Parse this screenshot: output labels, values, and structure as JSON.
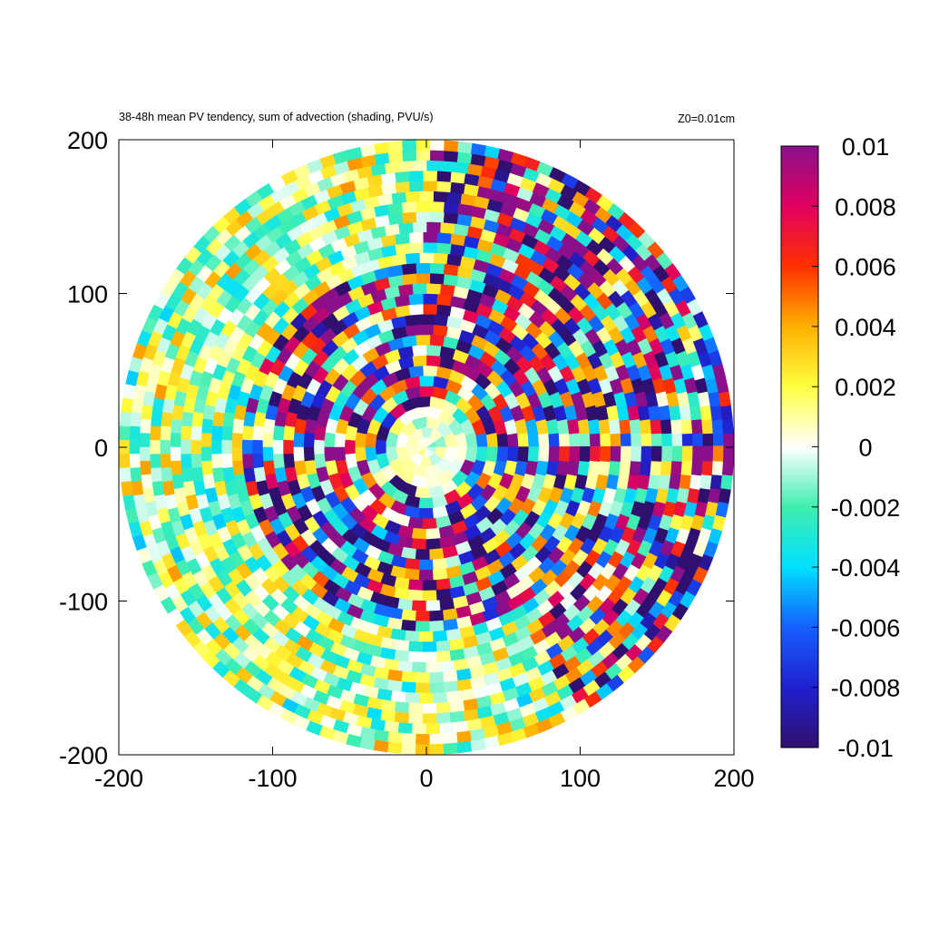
{
  "chart_data": {
    "type": "heatmap",
    "title": "38-48h mean PV tendency, sum of advection (shading, PVU/s)",
    "subtitle": "Z0=0.01cm",
    "xlabel": "",
    "ylabel": "",
    "xlim": [
      -200,
      200
    ],
    "ylim": [
      -200,
      200
    ],
    "x_ticks": [
      "-200",
      "-100",
      "0",
      "100",
      "200"
    ],
    "y_ticks": [
      "-200",
      "-100",
      "0",
      "100",
      "200"
    ],
    "grid": false,
    "domain_shape": "circle",
    "domain_radius": 200,
    "colorbar": {
      "min": -0.01,
      "max": 0.01,
      "ticks": [
        "0.01",
        "0.008",
        "0.006",
        "0.004",
        "0.002",
        "0",
        "-0.002",
        "-0.004",
        "-0.006",
        "-0.008",
        "-0.01"
      ],
      "colors": [
        "#30106e",
        "#2020d0",
        "#1560ff",
        "#00e0ff",
        "#40eeb0",
        "#ffffff",
        "#ffff40",
        "#ffb000",
        "#ff3000",
        "#e00060",
        "#8a108a"
      ]
    },
    "field_description": {
      "calm_core_radius": 30,
      "strong_ring_radius": [
        30,
        120
      ],
      "outer_weak_radius": [
        120,
        200
      ],
      "strong_sector_angle_deg": [
        -60,
        90
      ]
    }
  }
}
